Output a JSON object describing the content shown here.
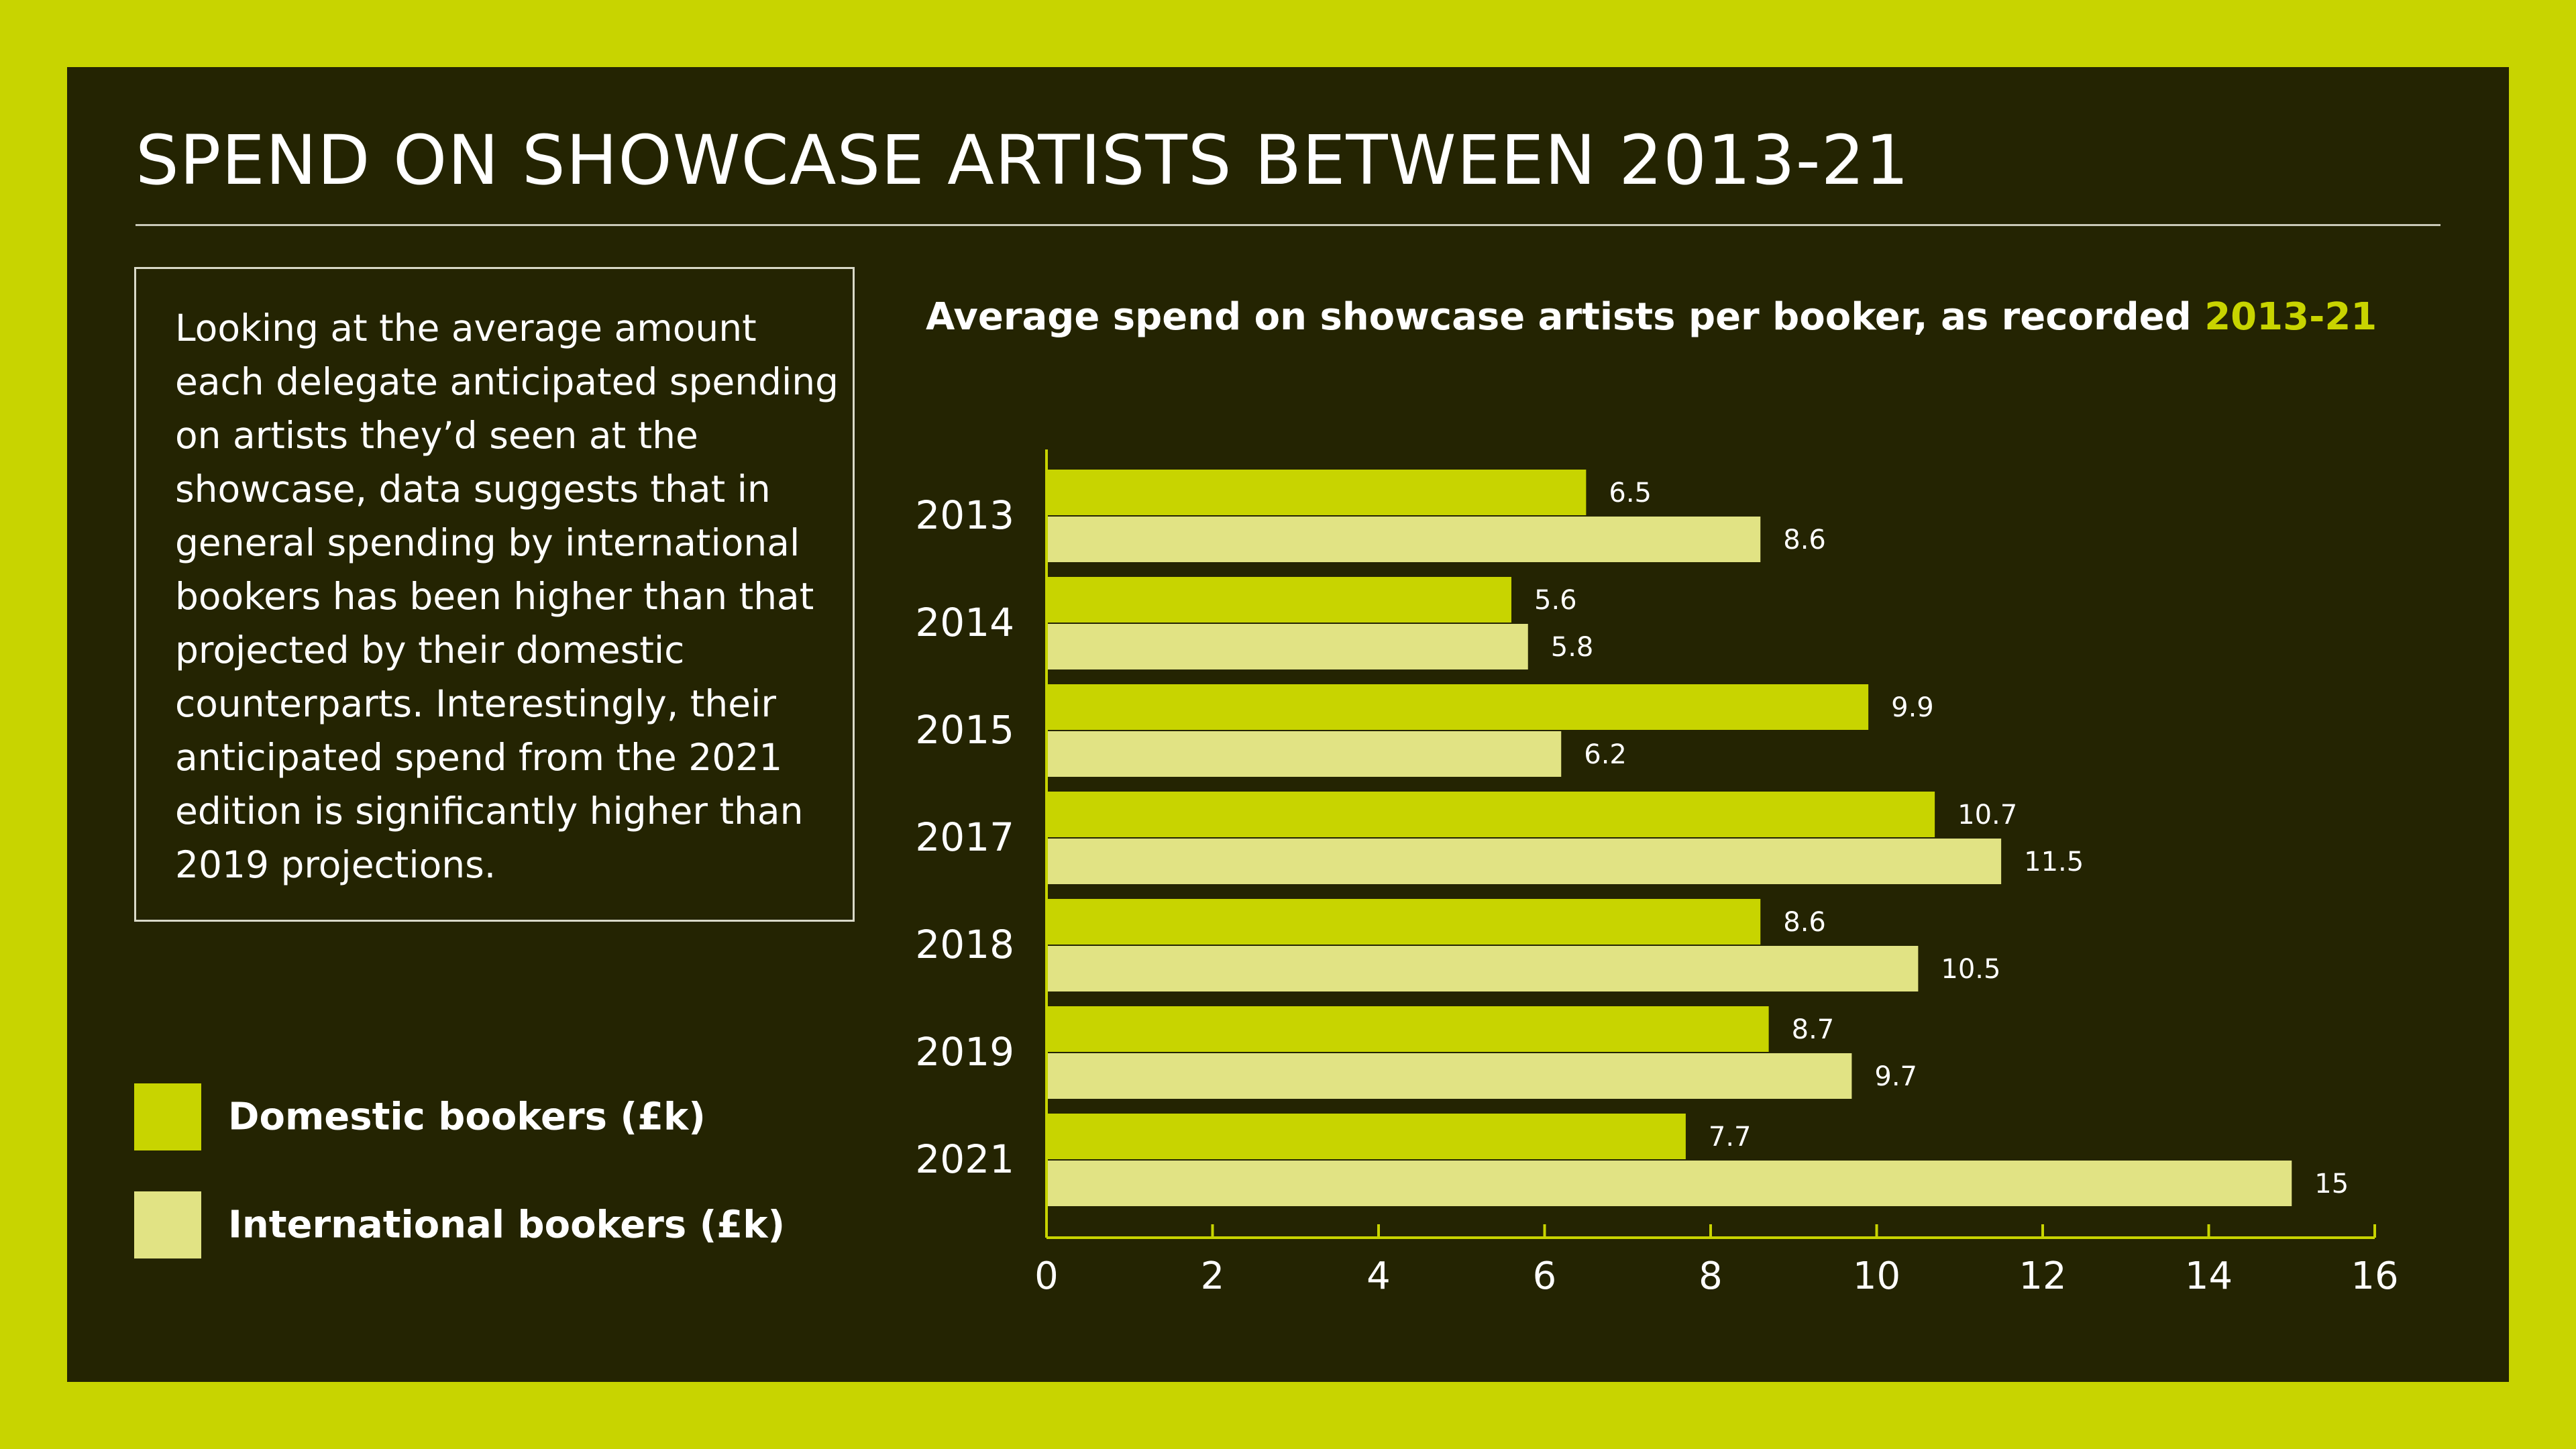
{
  "title": "SPEND ON SHOWCASE ARTISTS BETWEEN 2013-21",
  "description": "Looking at the average amount each delegate anticipated spending on artists they’d seen at the showcase, data suggests that in general spending by international bookers has been higher than that projected by their domestic counterparts. Interestingly, their anticipated spend from the 2021 edition is significantly higher than 2019 projections.",
  "legend": [
    {
      "label": "Domestic bookers (£k)",
      "color": "#c8d400"
    },
    {
      "label": "International bookers (£k)",
      "color": "#e1e384"
    }
  ],
  "colors": {
    "background": "#c8d400",
    "panel": "#242402",
    "domestic": "#c8d400",
    "international": "#e1e384",
    "axis": "#c8d400"
  },
  "chart_data": {
    "type": "bar",
    "orientation": "horizontal",
    "title": "Average spend on showcase artists per booker, as recorded",
    "title_highlight": "2013-21",
    "categories": [
      "2013",
      "2014",
      "2015",
      "2017",
      "2018",
      "2019",
      "2021"
    ],
    "series": [
      {
        "name": "Domestic bookers (£k)",
        "values": [
          6.5,
          5.6,
          9.9,
          10.7,
          8.6,
          8.7,
          7.7
        ]
      },
      {
        "name": "International bookers (£k)",
        "values": [
          8.6,
          5.8,
          6.2,
          11.5,
          10.5,
          9.7,
          15
        ]
      }
    ],
    "data_labels": [
      [
        "6.5",
        "5.6",
        "9.9",
        "10.7",
        "8.6",
        "8.7",
        "7.7"
      ],
      [
        "8.6",
        "5.8",
        "6.2",
        "11.5",
        "10.5",
        "9.7",
        "15"
      ]
    ],
    "xlim": [
      0,
      16
    ],
    "xticks": [
      0,
      2,
      4,
      6,
      8,
      10,
      12,
      14,
      16
    ],
    "grid": false,
    "legend_position": "bottom-left"
  }
}
